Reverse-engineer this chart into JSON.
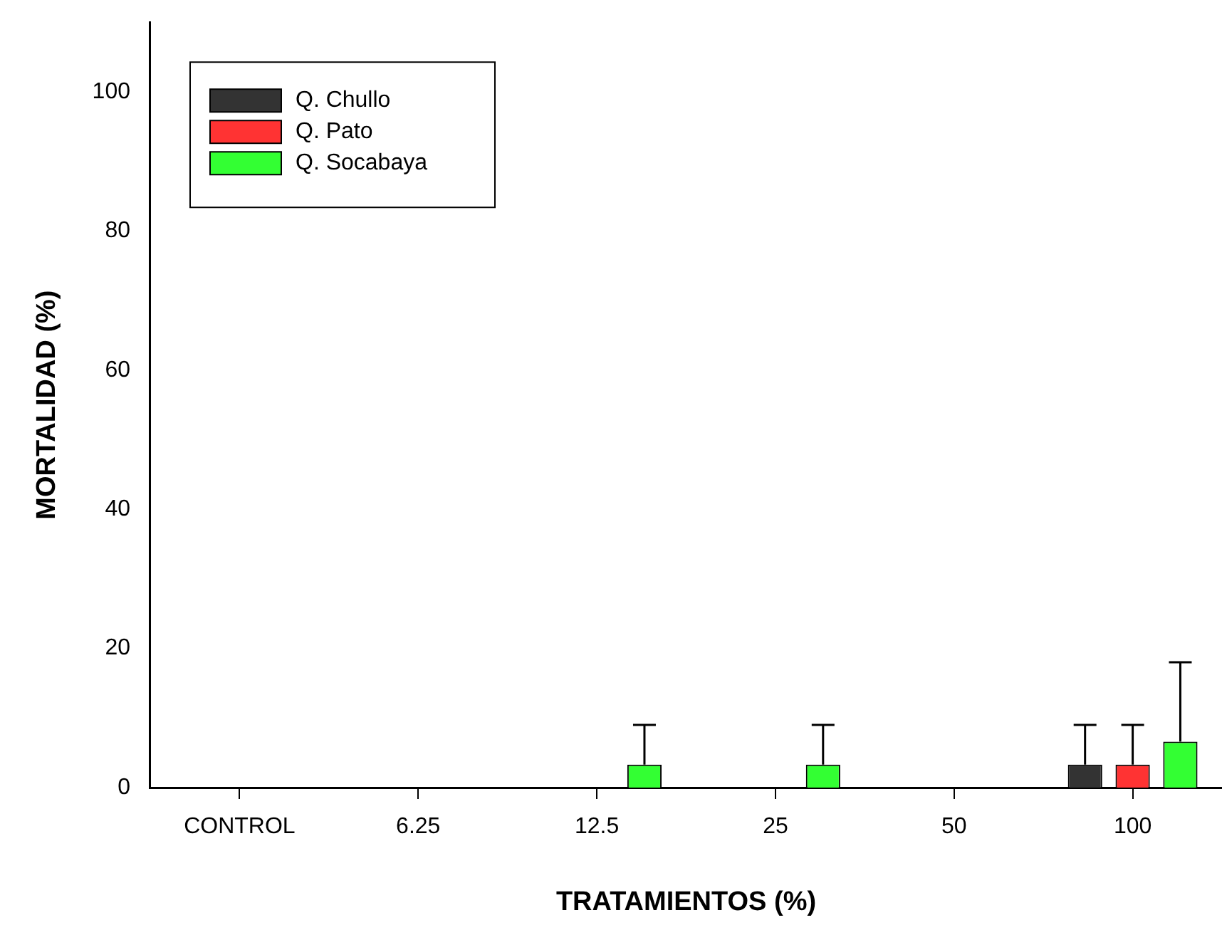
{
  "chart_data": {
    "type": "bar",
    "xlabel": "TRATAMIENTOS (%)",
    "ylabel": "MORTALIDAD (%)",
    "categories": [
      "CONTROL",
      "6.25",
      "12.5",
      "25",
      "50",
      "100"
    ],
    "series": [
      {
        "name": "Q. Chullo",
        "color": "#333333",
        "values": [
          0,
          0,
          0,
          0,
          0,
          3.3
        ],
        "errors": [
          null,
          null,
          null,
          null,
          null,
          [
            3.3,
            9
          ]
        ]
      },
      {
        "name": "Q. Pato",
        "color": "#ff3333",
        "values": [
          0,
          0,
          0,
          0,
          0,
          3.3
        ],
        "errors": [
          null,
          null,
          null,
          null,
          null,
          [
            3.3,
            9
          ]
        ]
      },
      {
        "name": "Q. Socabaya",
        "color": "#33ff33",
        "values": [
          0,
          0,
          3.3,
          3.3,
          0,
          6.6
        ],
        "errors": [
          null,
          null,
          [
            3.3,
            9
          ],
          [
            3.3,
            9
          ],
          null,
          [
            6.6,
            18
          ]
        ]
      }
    ],
    "ylim": [
      0,
      110
    ],
    "yticks": [
      0,
      20,
      40,
      60,
      80,
      100
    ],
    "grid": false,
    "legend": "top left"
  }
}
